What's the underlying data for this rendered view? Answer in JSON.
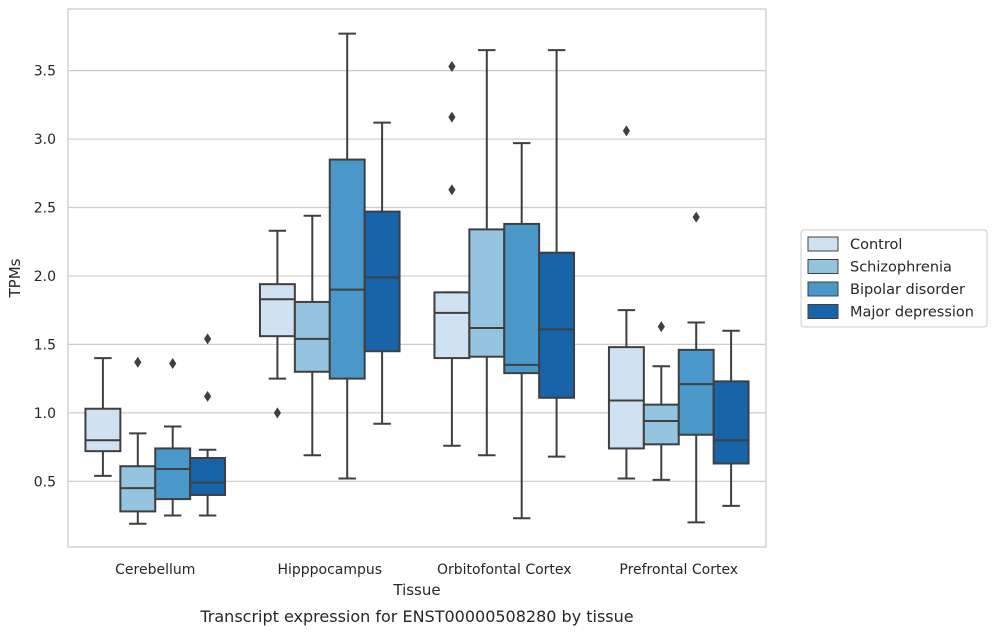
{
  "chart_data": {
    "type": "box",
    "caption": "Transcript expression for ENST00000508280 by tissue",
    "xlabel": "Tissue",
    "ylabel": "TPMs",
    "ylim": [
      0.02,
      3.95
    ],
    "yticks": [
      "0.5",
      "1.0",
      "1.5",
      "2.0",
      "2.5",
      "3.0",
      "3.5"
    ],
    "grid": "y",
    "legend_position": "right",
    "categories": [
      "Cerebellum",
      "Hipppocampus",
      "Orbitofontal Cortex",
      "Prefrontal Cortex"
    ],
    "series": [
      {
        "name": "Control",
        "color": "#d0e1f2",
        "boxes": [
          {
            "whislo": 0.54,
            "q1": 0.72,
            "med": 0.8,
            "q3": 1.03,
            "whishi": 1.4,
            "fliers": []
          },
          {
            "whislo": 1.25,
            "q1": 1.56,
            "med": 1.83,
            "q3": 1.94,
            "whishi": 2.33,
            "fliers": [
              1.0
            ]
          },
          {
            "whislo": 0.76,
            "q1": 1.4,
            "med": 1.73,
            "q3": 1.88,
            "whishi": 1.88,
            "fliers": [
              2.63,
              3.16,
              3.53
            ]
          },
          {
            "whislo": 0.52,
            "q1": 0.74,
            "med": 1.09,
            "q3": 1.48,
            "whishi": 1.75,
            "fliers": [
              3.06
            ]
          }
        ]
      },
      {
        "name": "Schizophrenia",
        "color": "#94c4df",
        "boxes": [
          {
            "whislo": 0.19,
            "q1": 0.28,
            "med": 0.45,
            "q3": 0.61,
            "whishi": 0.85,
            "fliers": [
              1.37
            ]
          },
          {
            "whislo": 0.69,
            "q1": 1.3,
            "med": 1.54,
            "q3": 1.81,
            "whishi": 2.44,
            "fliers": []
          },
          {
            "whislo": 0.69,
            "q1": 1.41,
            "med": 1.62,
            "q3": 2.34,
            "whishi": 3.65,
            "fliers": []
          },
          {
            "whislo": 0.51,
            "q1": 0.77,
            "med": 0.94,
            "q3": 1.06,
            "whishi": 1.34,
            "fliers": [
              1.63
            ]
          }
        ]
      },
      {
        "name": "Bipolar disorder",
        "color": "#4a98c9",
        "boxes": [
          {
            "whislo": 0.25,
            "q1": 0.37,
            "med": 0.59,
            "q3": 0.74,
            "whishi": 0.9,
            "fliers": [
              1.36
            ]
          },
          {
            "whislo": 0.52,
            "q1": 1.25,
            "med": 1.9,
            "q3": 2.85,
            "whishi": 3.77,
            "fliers": []
          },
          {
            "whislo": 0.23,
            "q1": 1.29,
            "med": 1.35,
            "q3": 2.38,
            "whishi": 2.97,
            "fliers": []
          },
          {
            "whislo": 0.2,
            "q1": 0.84,
            "med": 1.21,
            "q3": 1.46,
            "whishi": 1.66,
            "fliers": [
              2.43
            ]
          }
        ]
      },
      {
        "name": "Major depression",
        "color": "#1764ab",
        "boxes": [
          {
            "whislo": 0.25,
            "q1": 0.4,
            "med": 0.49,
            "q3": 0.67,
            "whishi": 0.73,
            "fliers": [
              1.12,
              1.54
            ]
          },
          {
            "whislo": 0.92,
            "q1": 1.45,
            "med": 1.99,
            "q3": 2.47,
            "whishi": 3.12,
            "fliers": []
          },
          {
            "whislo": 0.68,
            "q1": 1.11,
            "med": 1.61,
            "q3": 2.17,
            "whishi": 3.65,
            "fliers": []
          },
          {
            "whislo": 0.32,
            "q1": 0.63,
            "med": 0.8,
            "q3": 1.23,
            "whishi": 1.6,
            "fliers": []
          }
        ]
      }
    ]
  }
}
